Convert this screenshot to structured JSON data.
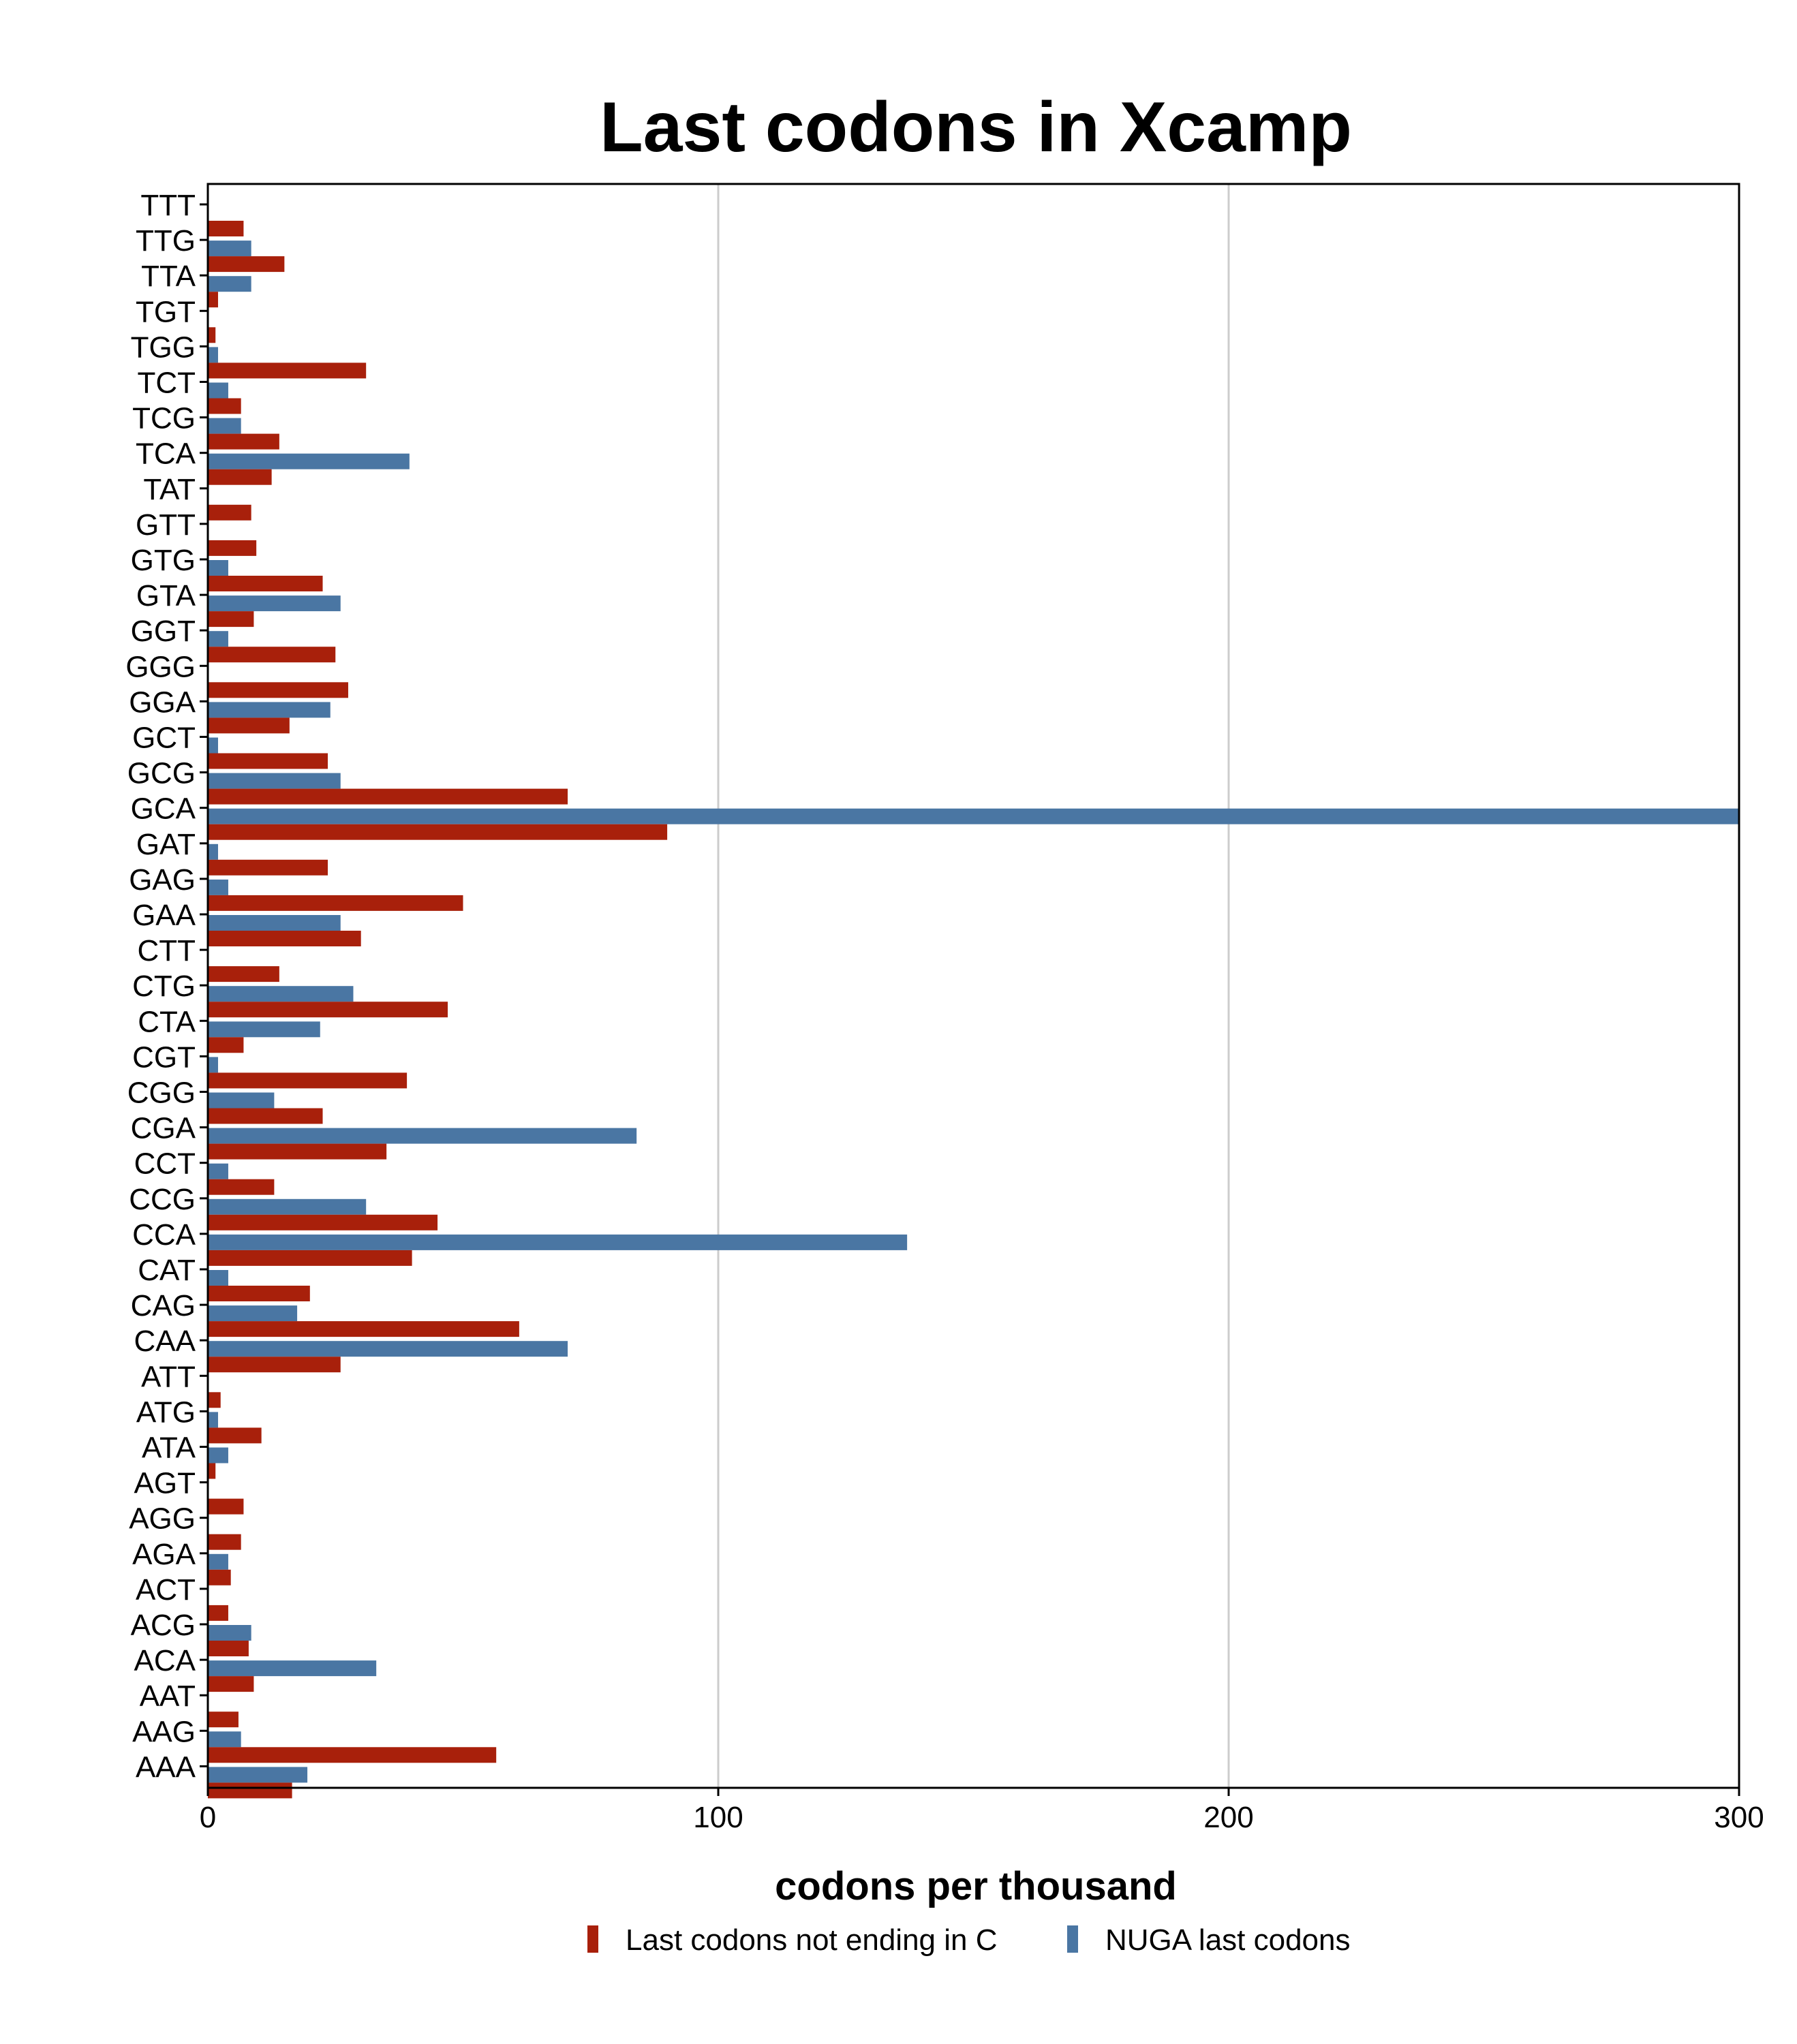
{
  "chart_data": {
    "type": "bar",
    "orientation": "horizontal",
    "title": "Last codons in Xcamp",
    "xlabel": "codons per thousand",
    "ylabel": "",
    "xlim": [
      0,
      300
    ],
    "xticks": [
      0,
      100,
      200,
      300
    ],
    "grid": true,
    "legend_position": "bottom",
    "categories": [
      "TTT",
      "TTG",
      "TTA",
      "TGT",
      "TGG",
      "TCT",
      "TCG",
      "TCA",
      "TAT",
      "GTT",
      "GTG",
      "GTA",
      "GGT",
      "GGG",
      "GGA",
      "GCT",
      "GCG",
      "GCA",
      "GAT",
      "GAG",
      "GAA",
      "CTT",
      "CTG",
      "CTA",
      "CGT",
      "CGG",
      "CGA",
      "CCT",
      "CCG",
      "CCA",
      "CAT",
      "CAG",
      "CAA",
      "ATT",
      "ATG",
      "ATA",
      "AGT",
      "AGG",
      "AGA",
      "ACT",
      "ACG",
      "ACA",
      "AAT",
      "AAG",
      "AAA"
    ],
    "series": [
      {
        "name": "Last codons not ending in C",
        "color": "#a8200b",
        "values": [
          7,
          15,
          2,
          1.5,
          31,
          6.5,
          14,
          12.5,
          8.5,
          9.5,
          22.5,
          9,
          25,
          27.5,
          16,
          23.5,
          70.5,
          90,
          23.5,
          50,
          30,
          14,
          47,
          7,
          39,
          22.5,
          35,
          13,
          45,
          40,
          20,
          61,
          26,
          2.5,
          10.5,
          1.5,
          7,
          6.5,
          4.5,
          4,
          8,
          9,
          6,
          56.5,
          16.5
        ]
      },
      {
        "name": "NUGA last codons",
        "color": "#4a76a3",
        "values": [
          0,
          8.5,
          8.5,
          0,
          2,
          4,
          6.5,
          39.5,
          0,
          0,
          4,
          26,
          4,
          0,
          24,
          2,
          26,
          300,
          2,
          4,
          26,
          0,
          28.5,
          22,
          2,
          13,
          84,
          4,
          31,
          137,
          4,
          17.5,
          70.5,
          0,
          2,
          4,
          0,
          0,
          4,
          0,
          8.5,
          33,
          0,
          6.5,
          19.5
        ]
      }
    ]
  }
}
